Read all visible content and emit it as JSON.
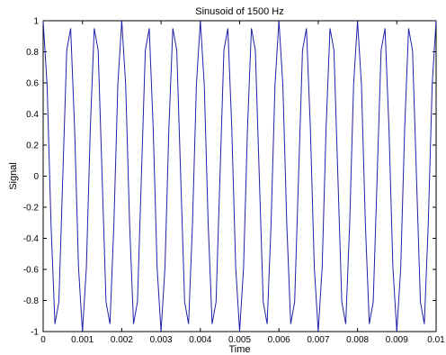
{
  "chart_data": {
    "type": "line",
    "title": "Sinusoid of 1500 Hz",
    "xlabel": "Time",
    "ylabel": "Signal",
    "xlim": [
      0,
      0.01
    ],
    "ylim": [
      -1,
      1
    ],
    "xticks": [
      "0",
      "0.001",
      "0.002",
      "0.003",
      "0.004",
      "0.005",
      "0.006",
      "0.007",
      "0.008",
      "0.009",
      "0.01"
    ],
    "yticks": [
      "1",
      "0.8",
      "0.6",
      "0.4",
      "0.2",
      "0",
      "-0.2",
      "-0.4",
      "-0.6",
      "-0.8",
      "-1"
    ],
    "grid": false,
    "series": [
      {
        "frequency_hz": 1500,
        "sample_interval": 0.0001,
        "color": "#1f1fa8"
      }
    ]
  }
}
